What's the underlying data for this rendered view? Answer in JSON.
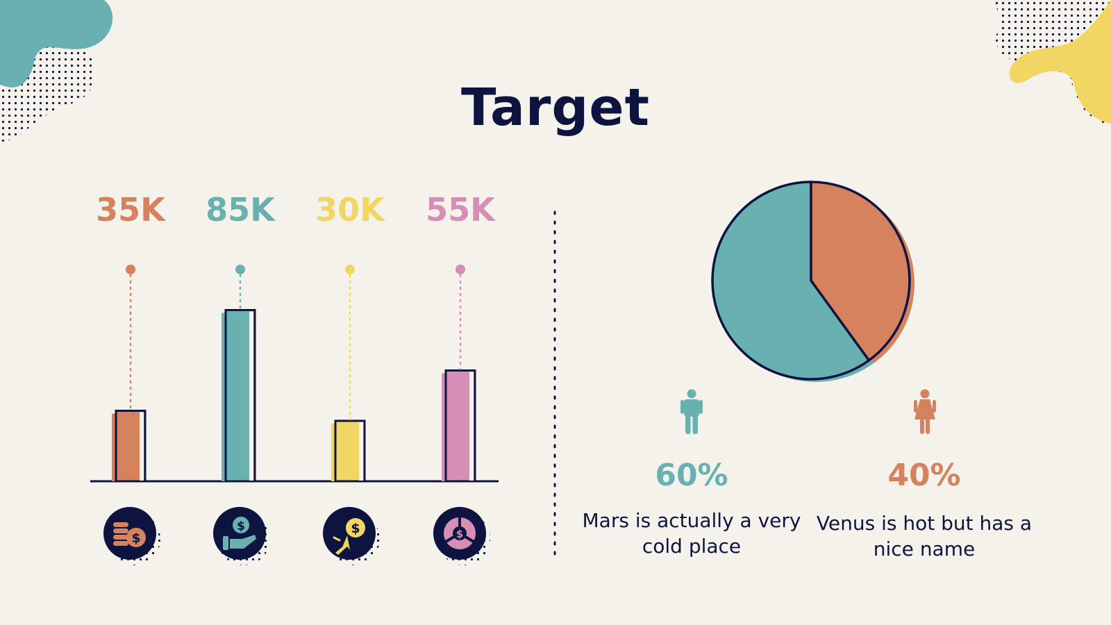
{
  "title": "Target",
  "colors": {
    "navy": "#0d1440",
    "orange": "#d6825e",
    "teal": "#69b0b1",
    "yellow": "#f2d664",
    "pink": "#d78eb6",
    "background": "#f5f2eb"
  },
  "chart_data": [
    {
      "type": "bar",
      "categories": [
        "",
        "",
        "",
        ""
      ],
      "values": [
        35,
        85,
        30,
        55
      ],
      "value_labels": [
        "35K",
        "85K",
        "30K",
        "55K"
      ],
      "colors": [
        "#d6825e",
        "#69b0b1",
        "#f2d664",
        "#d78eb6"
      ],
      "icons": [
        "coins-dollar-icon",
        "hand-holding-dollar-icon",
        "cursor-dollar-icon",
        "pie-dollar-icon"
      ]
    },
    {
      "type": "pie",
      "slices": [
        {
          "value": 60,
          "label": "60%",
          "color": "#69b0b1",
          "icon": "male-icon",
          "description": "Mars is actually a very cold place"
        },
        {
          "value": 40,
          "label": "40%",
          "color": "#d6825e",
          "icon": "female-icon",
          "description": "Venus is hot but has a nice name"
        }
      ]
    }
  ]
}
